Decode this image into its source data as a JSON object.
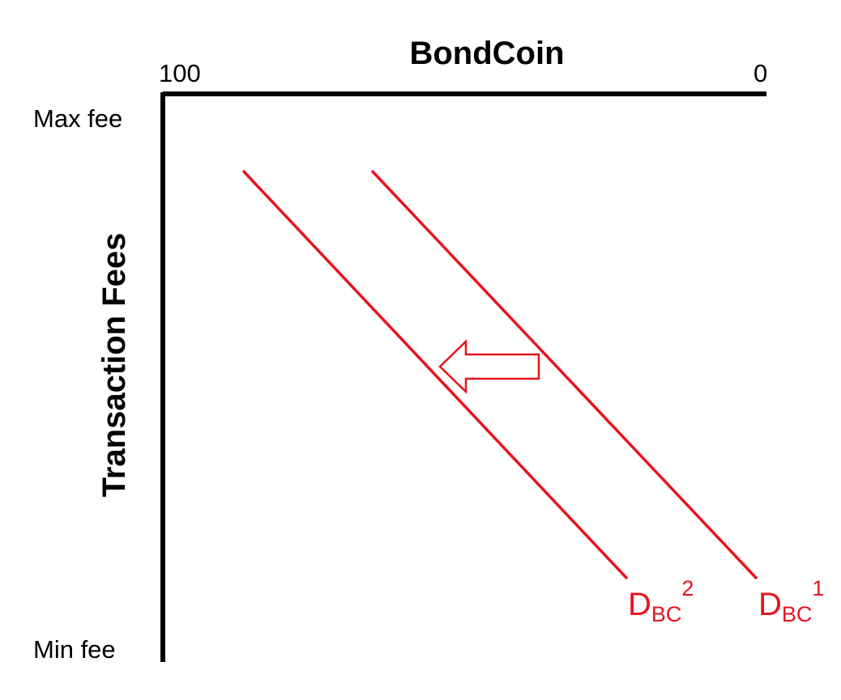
{
  "diagram": {
    "title": "BondCoin",
    "y_axis_label": "Transaction Fees",
    "x_axis": {
      "left_tick": "100",
      "right_tick": "0"
    },
    "y_axis": {
      "top_tick": "Max fee",
      "bottom_tick": "Min fee"
    },
    "curves": [
      {
        "main": "D",
        "sub": "BC",
        "sup": "1"
      },
      {
        "main": "D",
        "sub": "BC",
        "sup": "2"
      }
    ],
    "shift_arrow": {
      "direction": "left"
    },
    "colors": {
      "axis": "#000000",
      "curve": "#e8141c",
      "text": "#000000"
    }
  }
}
